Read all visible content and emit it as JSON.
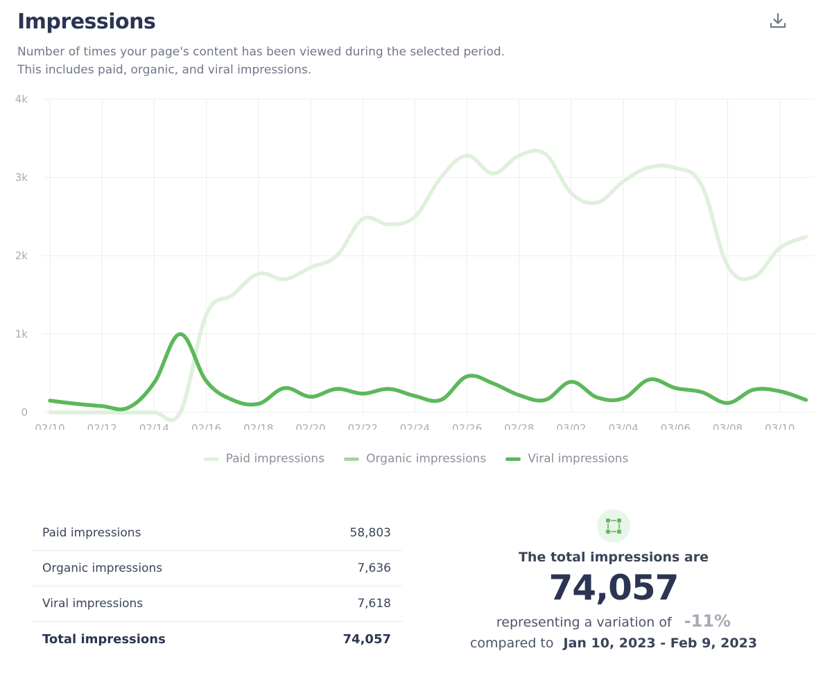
{
  "header": {
    "title": "Impressions",
    "subtitle_line1": "Number of times your page's content has been viewed during the selected period.",
    "subtitle_line2": "This includes paid, organic, and viral impressions.",
    "download_icon": "download-icon"
  },
  "chart_data": {
    "type": "line",
    "title": "Impressions",
    "xlabel": "",
    "ylabel": "",
    "ylim": [
      0,
      4000
    ],
    "yticks": [
      {
        "v": 0,
        "label": "0"
      },
      {
        "v": 1000,
        "label": "1k"
      },
      {
        "v": 2000,
        "label": "2k"
      },
      {
        "v": 3000,
        "label": "3k"
      },
      {
        "v": 4000,
        "label": "4k"
      }
    ],
    "x": [
      "02/10",
      "02/11",
      "02/12",
      "02/13",
      "02/14",
      "02/15",
      "02/16",
      "02/17",
      "02/18",
      "02/19",
      "02/20",
      "02/21",
      "02/22",
      "02/23",
      "02/24",
      "02/25",
      "02/26",
      "02/27",
      "02/28",
      "03/01",
      "03/02",
      "03/03",
      "03/04",
      "03/05",
      "03/06",
      "03/07",
      "03/08",
      "03/09",
      "03/10",
      "03/11"
    ],
    "xtick_labels": [
      "02/10",
      "02/12",
      "02/14",
      "02/16",
      "02/18",
      "02/20",
      "02/22",
      "02/24",
      "02/26",
      "02/28",
      "03/02",
      "03/04",
      "03/06",
      "03/08",
      "03/10"
    ],
    "grid": true,
    "legend_position": "bottom",
    "series": [
      {
        "name": "Paid impressions",
        "color": "#dff0dc",
        "values": [
          0,
          0,
          0,
          0,
          0,
          0,
          1250,
          1500,
          1770,
          1700,
          1850,
          2000,
          2470,
          2400,
          2500,
          3000,
          3280,
          3050,
          3280,
          3300,
          2800,
          2680,
          2950,
          3130,
          3120,
          2900,
          1870,
          1730,
          2100,
          2240
        ]
      },
      {
        "name": "Organic impressions",
        "color": "#a3d69f",
        "values": [
          150,
          110,
          80,
          60,
          380,
          1000,
          400,
          160,
          110,
          310,
          200,
          300,
          240,
          300,
          210,
          160,
          460,
          370,
          220,
          160,
          390,
          190,
          180,
          420,
          310,
          260,
          120,
          290,
          270,
          160
        ]
      },
      {
        "name": "Viral impressions",
        "color": "#5cb85a",
        "values": [
          150,
          110,
          80,
          60,
          380,
          1000,
          400,
          160,
          110,
          310,
          200,
          300,
          240,
          300,
          210,
          160,
          460,
          370,
          220,
          160,
          390,
          190,
          180,
          420,
          310,
          260,
          120,
          290,
          270,
          160
        ]
      }
    ]
  },
  "summary": {
    "rows": [
      {
        "label": "Paid impressions",
        "value": "58,803"
      },
      {
        "label": "Organic impressions",
        "value": "7,636"
      },
      {
        "label": "Viral impressions",
        "value": "7,618"
      }
    ],
    "total": {
      "label": "Total impressions",
      "value": "74,057"
    }
  },
  "stat": {
    "heading": "The total impressions are",
    "value": "74,057",
    "variation_text": "representing a variation of",
    "variation": "-11%",
    "compared_text": "compared to",
    "range": "Jan 10, 2023 - Feb 9, 2023",
    "accent": "#5cb85a"
  }
}
